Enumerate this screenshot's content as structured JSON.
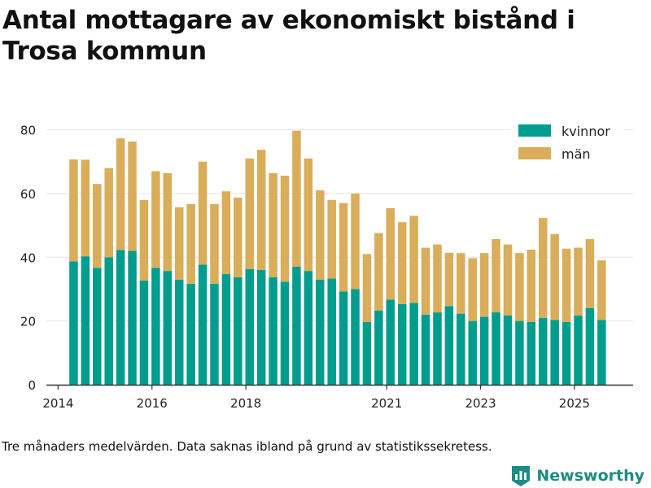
{
  "title": "Antal mottagare av ekonomiskt bistånd i Trosa kommun",
  "note": "Tre månaders medelvärden. Data saknas ibland på grund av statistikssekretess.",
  "brand": {
    "name": "Newsworthy"
  },
  "colors": {
    "kvinnor": "#009d8f",
    "man": "#d9ad5a",
    "axis": "#333333",
    "grid": "#e6e6e6"
  },
  "chart_data": {
    "type": "bar",
    "stacked": true,
    "xlabel": "",
    "ylabel": "",
    "ylim": [
      0,
      85
    ],
    "yticks": [
      0,
      20,
      40,
      60,
      80
    ],
    "xlim": [
      2013.75,
      2026.25
    ],
    "xticks": [
      2014,
      2016,
      2018,
      2021,
      2023,
      2025
    ],
    "xtick_labels": [
      "2014",
      "2016",
      "2018",
      "2021",
      "2023",
      "2025"
    ],
    "grid": true,
    "legend": {
      "position": "top-right",
      "entries": [
        "kvinnor",
        "män"
      ]
    },
    "x": [
      2014.33,
      2014.58,
      2014.83,
      2015.08,
      2015.33,
      2015.58,
      2015.83,
      2016.08,
      2016.33,
      2016.58,
      2016.83,
      2017.08,
      2017.33,
      2017.58,
      2017.83,
      2018.08,
      2018.33,
      2018.58,
      2018.83,
      2019.08,
      2019.33,
      2019.58,
      2019.83,
      2020.08,
      2020.33,
      2020.58,
      2020.83,
      2021.08,
      2021.33,
      2021.58,
      2021.83,
      2022.08,
      2022.33,
      2022.58,
      2022.83,
      2023.08,
      2023.33,
      2023.58,
      2023.83,
      2024.08,
      2024.33,
      2024.58,
      2024.83,
      2025.08,
      2025.33,
      2025.58
    ],
    "series": [
      {
        "name": "kvinnor",
        "values": [
          38.7,
          40.3,
          36.7,
          40.0,
          42.3,
          42.0,
          32.7,
          36.7,
          35.7,
          33.0,
          31.7,
          37.7,
          31.7,
          34.7,
          33.7,
          36.3,
          36.0,
          33.7,
          32.3,
          37.0,
          35.7,
          33.0,
          33.3,
          29.3,
          30.0,
          19.7,
          23.3,
          26.7,
          25.3,
          25.7,
          22.0,
          22.7,
          24.7,
          22.3,
          20.0,
          21.3,
          22.7,
          21.7,
          20.0,
          19.7,
          21.0,
          20.3,
          19.7,
          21.7,
          24.0,
          20.3
        ]
      },
      {
        "name": "män",
        "values": [
          32.0,
          30.3,
          26.3,
          28.0,
          35.0,
          34.3,
          25.3,
          30.3,
          30.7,
          22.7,
          25.0,
          32.3,
          25.0,
          26.0,
          25.0,
          34.7,
          37.7,
          32.7,
          33.3,
          42.7,
          35.3,
          28.0,
          24.7,
          27.7,
          30.0,
          21.3,
          24.3,
          28.7,
          25.7,
          27.3,
          21.0,
          21.3,
          16.7,
          19.0,
          19.7,
          20.0,
          23.0,
          22.3,
          21.3,
          22.7,
          31.3,
          27.0,
          23.0,
          21.3,
          21.7,
          18.7
        ]
      }
    ]
  }
}
